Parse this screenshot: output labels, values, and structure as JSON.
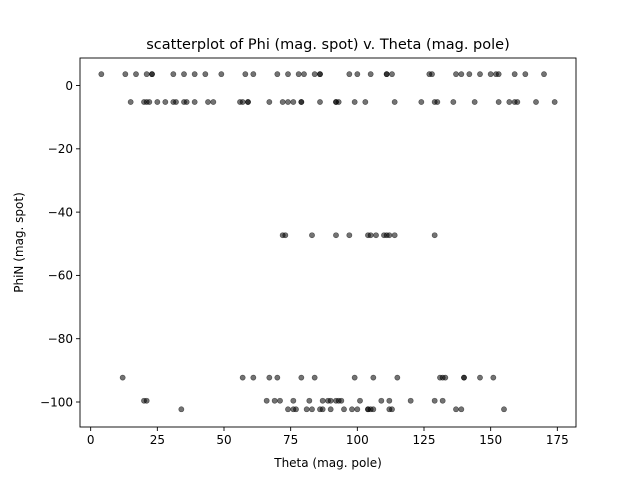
{
  "chart_data": {
    "type": "scatter",
    "title": "scatterplot of Phi (mag. spot) v. Theta (mag. pole)",
    "xlabel": "Theta (mag. pole)",
    "ylabel": "PhiN (mag. spot)",
    "xlim": [
      -4,
      182
    ],
    "ylim": [
      -107.9,
      8.7
    ],
    "xticks": [
      0,
      25,
      50,
      75,
      100,
      125,
      150,
      175
    ],
    "yticks": [
      0,
      -20,
      -40,
      -60,
      -80,
      -100
    ],
    "xtick_labels": [
      "0",
      "25",
      "50",
      "75",
      "100",
      "125",
      "150",
      "175"
    ],
    "ytick_labels": [
      "0",
      "−20",
      "−40",
      "−60",
      "−80",
      "−100"
    ],
    "grid": false,
    "legend": "none",
    "marker_color": "#000000",
    "marker_alpha": 0.55,
    "series": [
      {
        "x": [
          4,
          13,
          17,
          21,
          23,
          23,
          31,
          35,
          39,
          43,
          49,
          58,
          61,
          70,
          74,
          78,
          80,
          84,
          86,
          86,
          97,
          100,
          105,
          111,
          111,
          113,
          127,
          128,
          137,
          139,
          142,
          146,
          150,
          152,
          153,
          159,
          163,
          170
        ],
        "y": [
          3.6,
          3.6,
          3.6,
          3.6,
          3.6,
          3.6,
          3.6,
          3.6,
          3.6,
          3.6,
          3.6,
          3.6,
          3.6,
          3.6,
          3.6,
          3.6,
          3.6,
          3.6,
          3.6,
          3.6,
          3.6,
          3.6,
          3.6,
          3.6,
          3.6,
          3.6,
          3.6,
          3.6,
          3.6,
          3.6,
          3.6,
          3.6,
          3.6,
          3.6,
          3.6,
          3.6,
          3.6,
          3.6
        ]
      },
      {
        "x": [
          15,
          20,
          21,
          22,
          25,
          28,
          31,
          32,
          35,
          36,
          39,
          44,
          46,
          56,
          57,
          59,
          59,
          67,
          72,
          74,
          76,
          79,
          79,
          86,
          92,
          92,
          93,
          99,
          103,
          114,
          124,
          129,
          130,
          136,
          144,
          153,
          157,
          159,
          160,
          167,
          174
        ],
        "y": [
          -5.2,
          -5.2,
          -5.2,
          -5.2,
          -5.2,
          -5.2,
          -5.2,
          -5.2,
          -5.2,
          -5.2,
          -5.2,
          -5.2,
          -5.2,
          -5.2,
          -5.2,
          -5.2,
          -5.2,
          -5.2,
          -5.2,
          -5.2,
          -5.2,
          -5.2,
          -5.2,
          -5.2,
          -5.2,
          -5.2,
          -5.2,
          -5.2,
          -5.2,
          -5.2,
          -5.2,
          -5.2,
          -5.2,
          -5.2,
          -5.2,
          -5.2,
          -5.2,
          -5.2,
          -5.2,
          -5.2,
          -5.2
        ]
      },
      {
        "x": [
          72,
          73,
          83,
          92,
          97,
          104,
          105,
          107,
          110,
          111,
          112,
          114,
          129
        ],
        "y": [
          -47.3,
          -47.3,
          -47.3,
          -47.3,
          -47.3,
          -47.3,
          -47.3,
          -47.3,
          -47.3,
          -47.3,
          -47.3,
          -47.3,
          -47.3
        ]
      },
      {
        "x": [
          12,
          57,
          61,
          67,
          70,
          79,
          84,
          99,
          106,
          115,
          131,
          132,
          133,
          140,
          140,
          146,
          151
        ],
        "y": [
          -92.3,
          -92.3,
          -92.3,
          -92.3,
          -92.3,
          -92.3,
          -92.3,
          -92.3,
          -92.3,
          -92.3,
          -92.3,
          -92.3,
          -92.3,
          -92.3,
          -92.3,
          -92.3,
          -92.3
        ]
      },
      {
        "x": [
          20,
          21,
          66,
          69,
          71,
          76,
          82,
          87,
          89,
          90,
          92,
          93,
          94,
          101,
          109,
          112,
          120,
          129,
          132
        ],
        "y": [
          -99.6,
          -99.6,
          -99.6,
          -99.6,
          -99.6,
          -99.6,
          -99.6,
          -99.6,
          -99.6,
          -99.6,
          -99.6,
          -99.6,
          -99.6,
          -99.6,
          -99.6,
          -99.6,
          -99.6,
          -99.6,
          -99.6
        ]
      },
      {
        "x": [
          34,
          74,
          76,
          77,
          81,
          83,
          86,
          87,
          90,
          95,
          98,
          100,
          104,
          104,
          105,
          106,
          112,
          113,
          137,
          139,
          155
        ],
        "y": [
          -102.3,
          -102.3,
          -102.3,
          -102.3,
          -102.3,
          -102.3,
          -102.3,
          -102.3,
          -102.3,
          -102.3,
          -102.3,
          -102.3,
          -102.3,
          -102.3,
          -102.3,
          -102.3,
          -102.3,
          -102.3,
          -102.3,
          -102.3,
          -102.3
        ]
      }
    ]
  }
}
